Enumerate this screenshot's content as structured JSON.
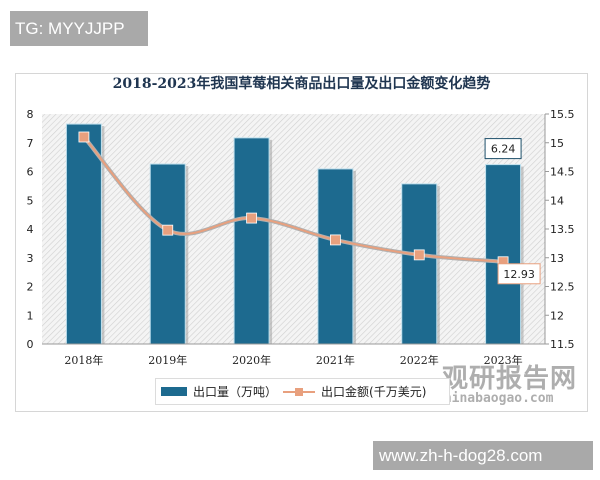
{
  "watermark_top": "TG: MYYJJPP",
  "watermark_bottom": "www.zh-h-dog28.com",
  "logo": {
    "cn": "观研报告网",
    "en": "chinabaogao.com"
  },
  "chart_data": {
    "type": "bar+line",
    "title": "2018-2023年我国草莓相关商品出口量及出口金额变化趋势",
    "categories": [
      "2018年",
      "2019年",
      "2020年",
      "2021年",
      "2022年",
      "2023年"
    ],
    "series": [
      {
        "name": "出口量（万吨）",
        "type": "bar",
        "axis": "left",
        "color": "#1d6a8f",
        "values": [
          7.65,
          6.26,
          7.17,
          6.09,
          5.57,
          6.24
        ]
      },
      {
        "name": "出口金额(千万美元)",
        "type": "line",
        "axis": "right",
        "color": "#e8a07e",
        "values": [
          15.1,
          13.48,
          13.69,
          13.31,
          13.05,
          12.93
        ]
      }
    ],
    "data_labels": {
      "bar_last": "6.24",
      "line_last": "12.93"
    },
    "left_axis": {
      "ylim": [
        0,
        8
      ],
      "ticks": [
        "0",
        "1",
        "2",
        "3",
        "4",
        "5",
        "6",
        "7",
        "8"
      ]
    },
    "right_axis": {
      "ylim": [
        11.5,
        15.5
      ],
      "ticks": [
        "11.5",
        "12",
        "12.5",
        "13",
        "13.5",
        "14",
        "14.5",
        "15",
        "15.5"
      ]
    },
    "grid": false,
    "legend": "bottom"
  }
}
